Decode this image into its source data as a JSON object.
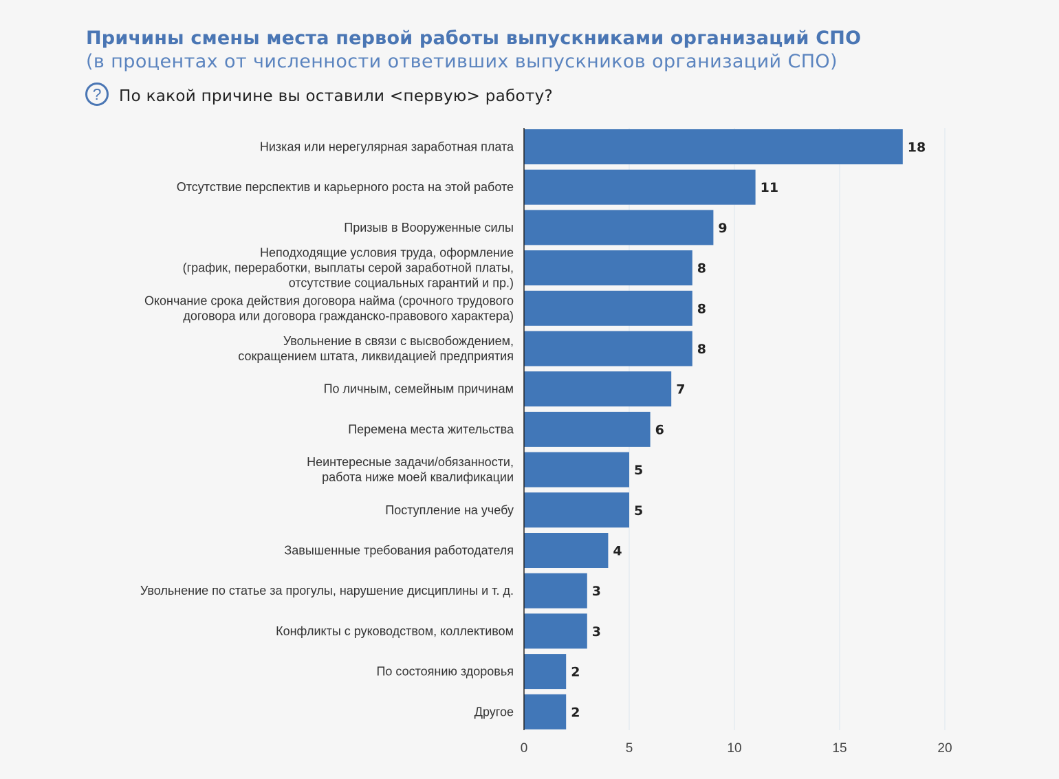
{
  "header": {
    "title": "Причины смены места первой работы выпускниками организаций СПО",
    "subtitle": "(в процентах от численности ответивших выпускников организаций СПО)",
    "question": "По какой причине вы оставили <первую> работу?",
    "question_icon": "question-circle-icon"
  },
  "colors": {
    "bar": "#4177b8",
    "title": "#4a76b4",
    "grid": "#dce6ef"
  },
  "chart_data": {
    "type": "bar",
    "orientation": "horizontal",
    "title": "Причины смены места первой работы выпускниками организаций СПО",
    "xlabel": "",
    "ylabel": "",
    "xlim": [
      0,
      20
    ],
    "xticks": [
      0,
      5,
      10,
      15,
      20
    ],
    "grid": true,
    "categories": [
      [
        "Низкая или нерегулярная заработная плата"
      ],
      [
        "Отсутствие перспектив и карьерного роста на этой работе"
      ],
      [
        "Призыв в Вооруженные силы"
      ],
      [
        "Неподходящие условия труда, оформление",
        "(график, переработки, выплаты серой заработной платы,",
        "отсутствие социальных гарантий и пр.)"
      ],
      [
        "Окончание срока действия договора найма (срочного трудового",
        "договора или договора гражданско-правового характера)"
      ],
      [
        "Увольнение в связи с высвобождением,",
        "сокращением штата, ликвидацией предприятия"
      ],
      [
        "По личным, семейным причинам"
      ],
      [
        "Перемена места жительства"
      ],
      [
        "Неинтересные задачи/обязанности,",
        "работа ниже моей квалификации"
      ],
      [
        "Поступление на учебу"
      ],
      [
        "Завышенные требования работодателя"
      ],
      [
        "Увольнение по статье за прогулы, нарушение дисциплины и т. д."
      ],
      [
        "Конфликты с руководством, коллективом"
      ],
      [
        "По состоянию здоровья"
      ],
      [
        "Другое"
      ]
    ],
    "values": [
      18,
      11,
      9,
      8,
      8,
      8,
      7,
      6,
      5,
      5,
      4,
      3,
      3,
      2,
      2
    ]
  }
}
